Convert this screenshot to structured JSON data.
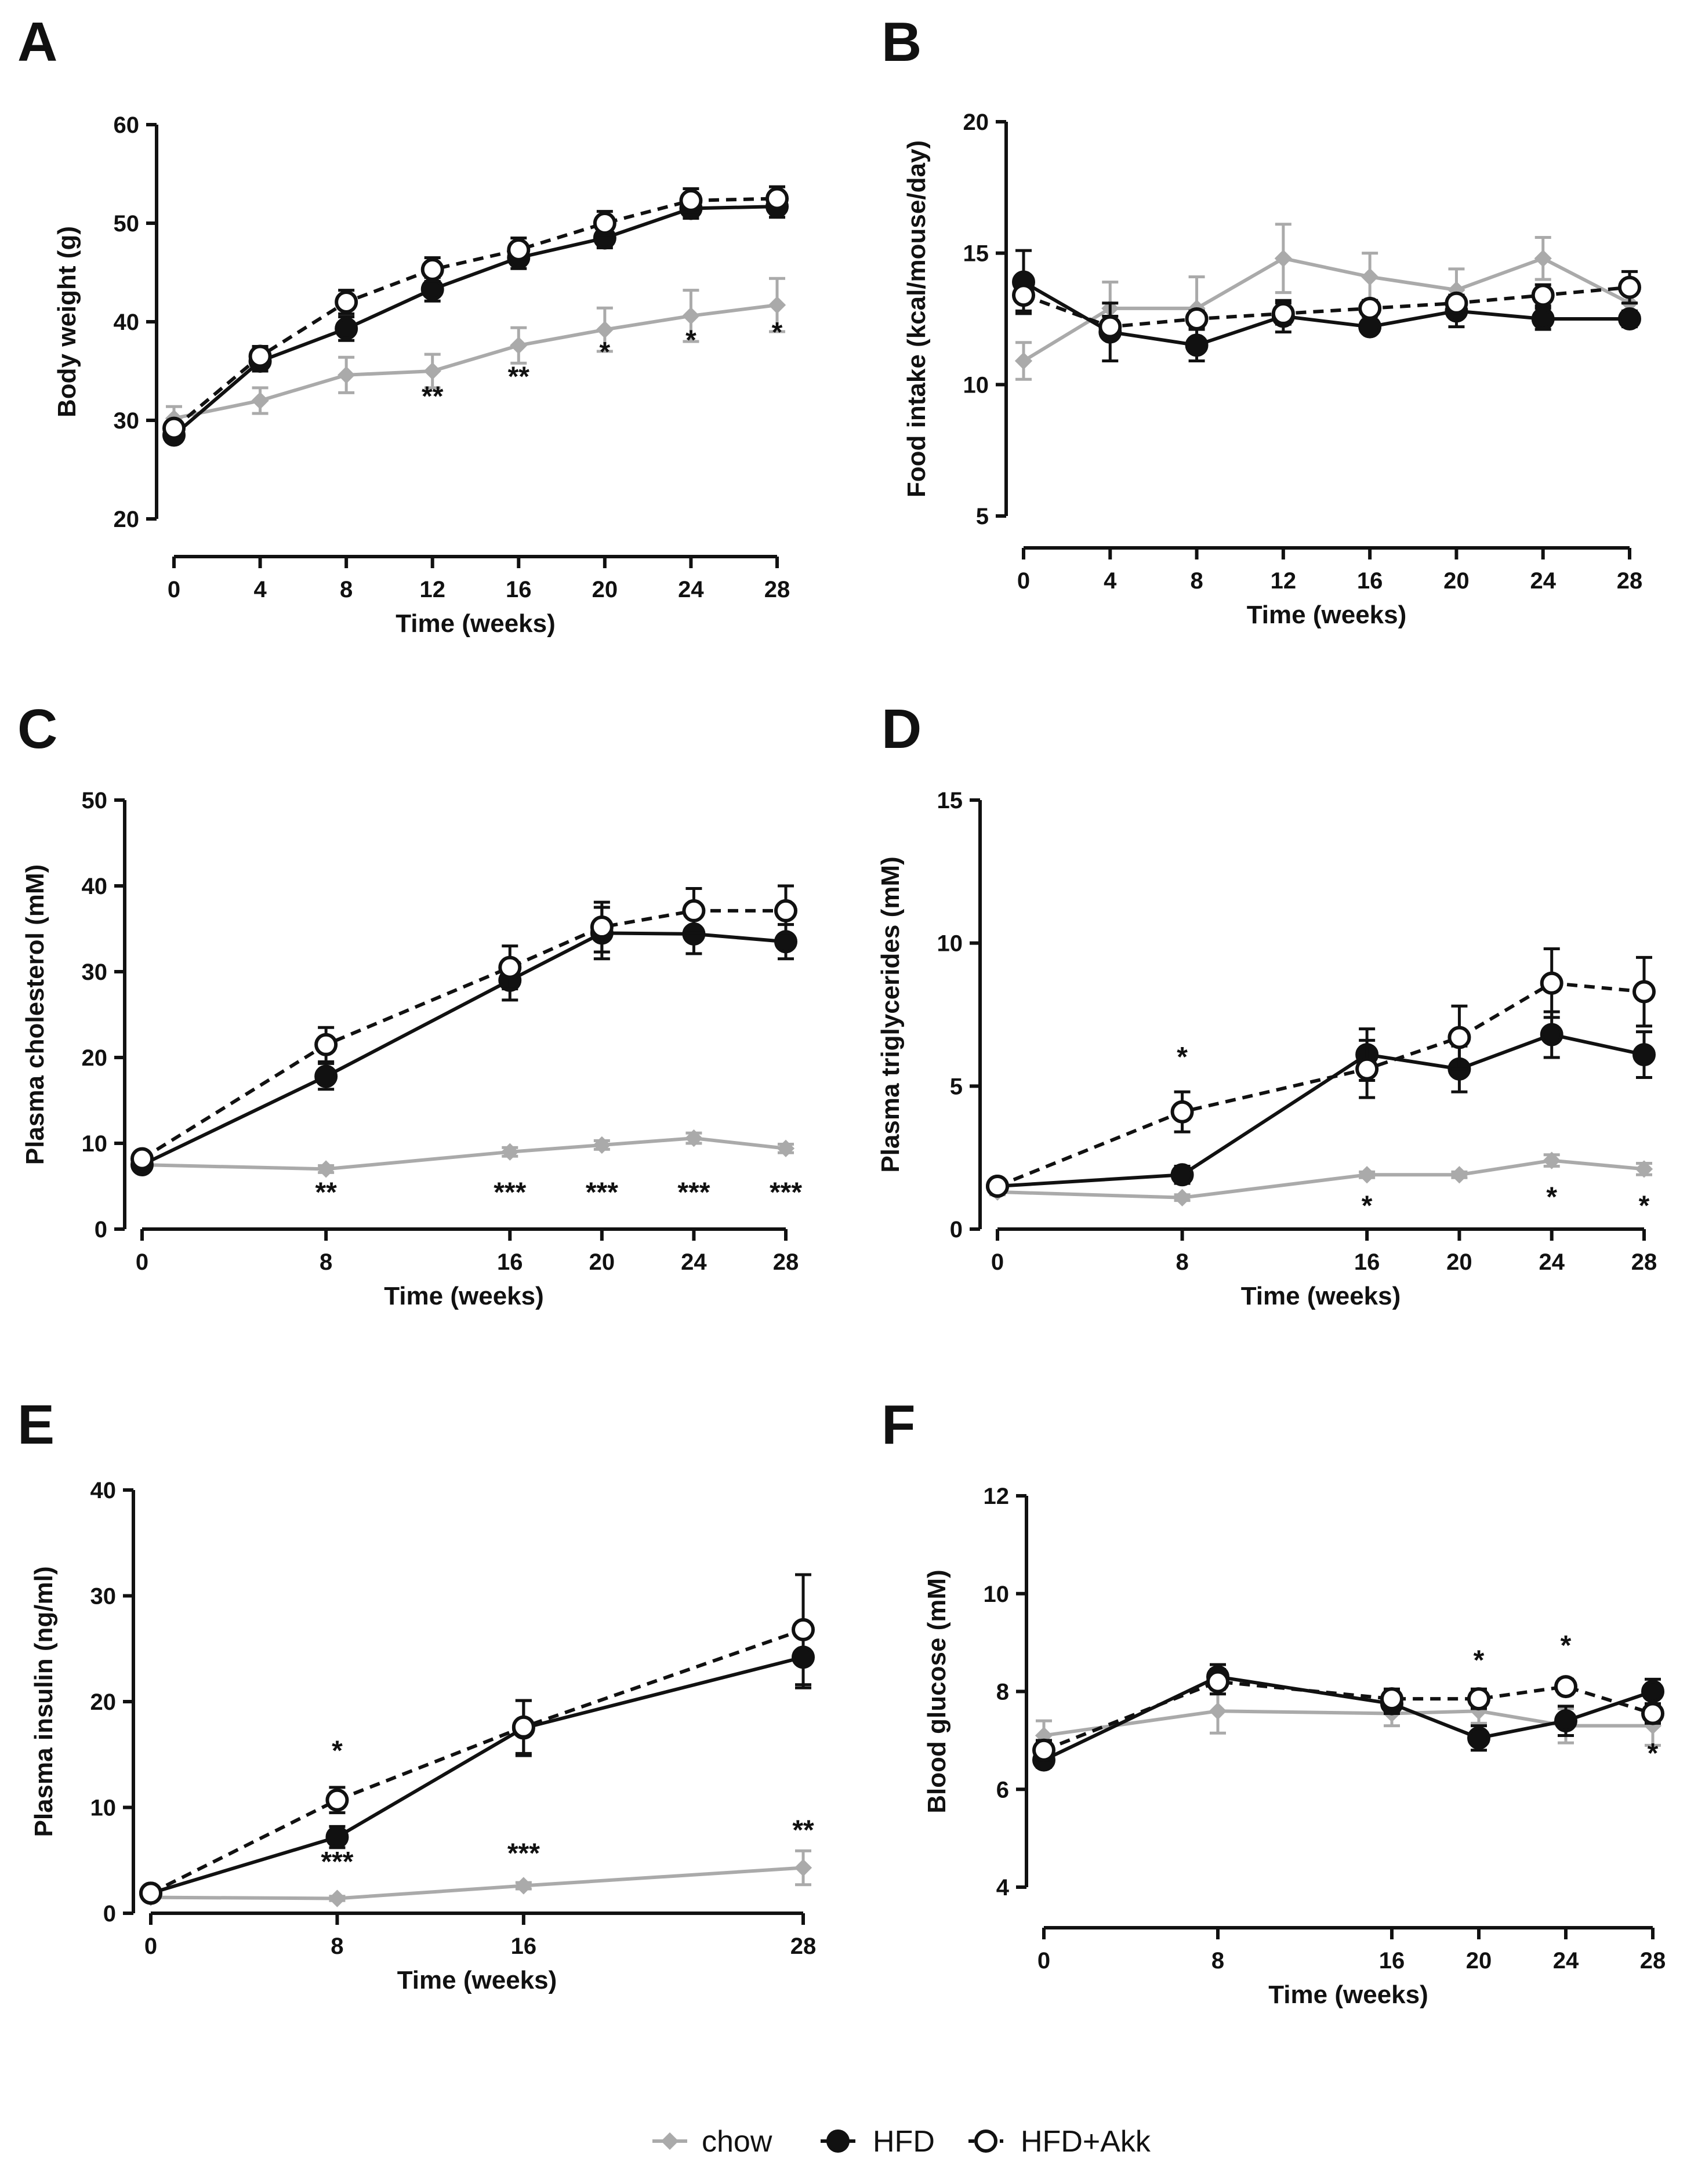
{
  "chart_data": [
    {
      "panel": "A",
      "type": "line",
      "xlabel": "Time (weeks)",
      "ylabel": "Body weight (g)",
      "x": [
        0,
        4,
        8,
        12,
        16,
        20,
        24,
        28
      ],
      "xticks": [
        "0",
        "4",
        "8",
        "12",
        "16",
        "20",
        "24",
        "28"
      ],
      "ylim": [
        20,
        60
      ],
      "yticks": [
        "20",
        "30",
        "40",
        "50",
        "60"
      ],
      "series": [
        {
          "name": "chow",
          "values": [
            30.2,
            32.0,
            34.6,
            35.0,
            37.6,
            39.2,
            40.6,
            41.7
          ],
          "errors": [
            1.2,
            1.3,
            1.8,
            1.7,
            1.8,
            2.2,
            2.6,
            2.7
          ]
        },
        {
          "name": "HFD",
          "values": [
            28.5,
            36.0,
            39.3,
            43.3,
            46.5,
            48.5,
            51.5,
            51.7
          ],
          "errors": [
            0.6,
            1.0,
            1.2,
            1.2,
            1.1,
            1.0,
            1.0,
            1.1
          ]
        },
        {
          "name": "HFD+Akk",
          "values": [
            29.2,
            36.5,
            42.0,
            45.3,
            47.3,
            50.0,
            52.3,
            52.5
          ],
          "errors": [
            0.7,
            1.0,
            1.2,
            1.2,
            1.2,
            1.2,
            1.2,
            1.2
          ]
        }
      ],
      "annotations": [
        {
          "x": 12,
          "text": "**",
          "y": 31.5
        },
        {
          "x": 16,
          "text": "**",
          "y": 33.5
        },
        {
          "x": 20,
          "text": "*",
          "y": 36.0
        },
        {
          "x": 24,
          "text": "*",
          "y": 37.2
        },
        {
          "x": 28,
          "text": "*",
          "y": 38.0
        }
      ]
    },
    {
      "panel": "B",
      "type": "line",
      "xlabel": "Time (weeks)",
      "ylabel": "Food intake (kcal/mouse/day)",
      "x": [
        0,
        4,
        8,
        12,
        16,
        20,
        24,
        28
      ],
      "xticks": [
        "0",
        "4",
        "8",
        "12",
        "16",
        "20",
        "24",
        "28"
      ],
      "ylim": [
        5,
        20
      ],
      "yticks": [
        "5",
        "10",
        "15",
        "20"
      ],
      "series": [
        {
          "name": "chow",
          "values": [
            10.9,
            12.9,
            12.9,
            14.8,
            14.1,
            13.6,
            14.8,
            13.1
          ],
          "errors": [
            0.7,
            1.0,
            1.2,
            1.3,
            0.9,
            0.8,
            0.8,
            0.6
          ]
        },
        {
          "name": "HFD",
          "values": [
            13.9,
            12.0,
            11.5,
            12.6,
            12.2,
            12.8,
            12.5,
            12.5
          ],
          "errors": [
            1.2,
            1.1,
            0.6,
            0.6,
            0.2,
            0.6,
            0.4,
            0.3
          ]
        },
        {
          "name": "HFD+Akk",
          "values": [
            13.4,
            12.2,
            12.5,
            12.7,
            12.9,
            13.1,
            13.4,
            13.7
          ],
          "errors": [
            0.6,
            0.4,
            0.3,
            0.4,
            0.3,
            0.3,
            0.4,
            0.6
          ]
        }
      ],
      "annotations": []
    },
    {
      "panel": "C",
      "type": "line",
      "xlabel": "Time (weeks)",
      "ylabel": "Plasma cholesterol (mM)",
      "x": [
        0,
        8,
        16,
        20,
        24,
        28
      ],
      "xticks": [
        "0",
        "8",
        "16",
        "20",
        "24",
        "28"
      ],
      "ylim": [
        0,
        50
      ],
      "yticks": [
        "0",
        "10",
        "20",
        "30",
        "40",
        "50"
      ],
      "series": [
        {
          "name": "chow",
          "values": [
            7.5,
            7.0,
            9.0,
            9.8,
            10.6,
            9.4
          ],
          "errors": [
            0.4,
            0.4,
            0.5,
            0.5,
            0.6,
            0.5
          ]
        },
        {
          "name": "HFD",
          "values": [
            7.5,
            17.8,
            29.0,
            34.5,
            34.4,
            33.5
          ],
          "errors": [
            0.5,
            1.5,
            2.3,
            3.0,
            2.3,
            2.0
          ]
        },
        {
          "name": "HFD+Akk",
          "values": [
            8.2,
            21.5,
            30.5,
            35.2,
            37.1,
            37.1
          ],
          "errors": [
            0.5,
            2.0,
            2.5,
            2.9,
            2.6,
            2.9
          ]
        }
      ],
      "annotations": [
        {
          "x": 8,
          "text": "**",
          "y": 3.2
        },
        {
          "x": 16,
          "text": "***",
          "y": 3.2
        },
        {
          "x": 20,
          "text": "***",
          "y": 3.2
        },
        {
          "x": 24,
          "text": "***",
          "y": 3.2
        },
        {
          "x": 28,
          "text": "***",
          "y": 3.2
        }
      ]
    },
    {
      "panel": "D",
      "type": "line",
      "xlabel": "Time (weeks)",
      "ylabel": "Plasma triglycerides (mM)",
      "x": [
        0,
        8,
        16,
        20,
        24,
        28
      ],
      "xticks": [
        "0",
        "8",
        "16",
        "20",
        "24",
        "28"
      ],
      "ylim": [
        0,
        15
      ],
      "yticks": [
        "0",
        "5",
        "10",
        "15"
      ],
      "series": [
        {
          "name": "chow",
          "values": [
            1.3,
            1.1,
            1.9,
            1.9,
            2.4,
            2.1
          ],
          "errors": [
            0.1,
            0.1,
            0.1,
            0.1,
            0.2,
            0.2
          ]
        },
        {
          "name": "HFD",
          "values": [
            1.5,
            1.9,
            6.1,
            5.6,
            6.8,
            6.1
          ],
          "errors": [
            0.2,
            0.3,
            0.9,
            0.8,
            0.8,
            0.8
          ]
        },
        {
          "name": "HFD+Akk",
          "values": [
            1.5,
            4.1,
            5.6,
            6.7,
            8.6,
            8.3
          ],
          "errors": [
            0.2,
            0.7,
            1.0,
            1.1,
            1.2,
            1.2
          ]
        }
      ],
      "annotations": [
        {
          "x": 8,
          "text": "*",
          "y": 5.7
        },
        {
          "x": 16,
          "text": "*",
          "y": 0.5
        },
        {
          "x": 24,
          "text": "*",
          "y": 0.8
        },
        {
          "x": 28,
          "text": "*",
          "y": 0.5
        }
      ]
    },
    {
      "panel": "E",
      "type": "line",
      "xlabel": "Time (weeks)",
      "ylabel": "Plasma insulin (ng/ml)",
      "x": [
        0,
        8,
        16,
        28
      ],
      "xticks": [
        "0",
        "8",
        "16",
        "28"
      ],
      "ylim": [
        0,
        40
      ],
      "yticks": [
        "0",
        "10",
        "20",
        "30",
        "40"
      ],
      "series": [
        {
          "name": "chow",
          "values": [
            1.5,
            1.4,
            2.6,
            4.3
          ],
          "errors": [
            0.2,
            0.2,
            0.3,
            1.6
          ]
        },
        {
          "name": "HFD",
          "values": [
            1.9,
            7.2,
            17.5,
            24.2
          ],
          "errors": [
            0.3,
            1.0,
            2.6,
            2.9
          ]
        },
        {
          "name": "HFD+Akk",
          "values": [
            1.9,
            10.7,
            17.6,
            26.8
          ],
          "errors": [
            0.3,
            1.2,
            2.5,
            5.2
          ]
        }
      ],
      "annotations": [
        {
          "x": 8,
          "text": "*",
          "y": 14.5
        },
        {
          "x": 8,
          "text": "***",
          "y": 4.0
        },
        {
          "x": 16,
          "text": "***",
          "y": 4.8
        },
        {
          "x": 28,
          "text": "**",
          "y": 7.0
        }
      ]
    },
    {
      "panel": "F",
      "type": "line",
      "xlabel": "Time (weeks)",
      "ylabel": "Blood glucose (mM)",
      "x": [
        0,
        8,
        16,
        20,
        24,
        28
      ],
      "xticks": [
        "0",
        "8",
        "16",
        "20",
        "24",
        "28"
      ],
      "ylim": [
        4,
        12
      ],
      "yticks": [
        "4",
        "6",
        "8",
        "10",
        "12"
      ],
      "series": [
        {
          "name": "chow",
          "values": [
            7.1,
            7.6,
            7.55,
            7.6,
            7.3,
            7.3
          ],
          "errors": [
            0.3,
            0.45,
            0.25,
            0.25,
            0.35,
            0.4
          ]
        },
        {
          "name": "HFD",
          "values": [
            6.6,
            8.3,
            7.75,
            7.05,
            7.4,
            8.0
          ],
          "errors": [
            0.15,
            0.25,
            0.2,
            0.25,
            0.3,
            0.25
          ]
        },
        {
          "name": "HFD+Akk",
          "values": [
            6.8,
            8.2,
            7.85,
            7.85,
            8.1,
            7.55
          ],
          "errors": [
            0.2,
            0.25,
            0.2,
            0.2,
            0.15,
            0.2
          ]
        }
      ],
      "annotations": [
        {
          "x": 20,
          "text": "*",
          "y": 8.45
        },
        {
          "x": 24,
          "text": "*",
          "y": 8.75
        },
        {
          "x": 28,
          "text": "*",
          "y": 6.55
        }
      ]
    }
  ],
  "legend": {
    "items": [
      {
        "name": "chow",
        "label": "chow"
      },
      {
        "name": "HFD",
        "label": "HFD"
      },
      {
        "name": "HFD+Akk",
        "label": "HFD+Akk"
      }
    ]
  },
  "colors": {
    "chow": "#aaaaaa",
    "HFD": "#111111",
    "HFD+Akk": "#111111"
  }
}
